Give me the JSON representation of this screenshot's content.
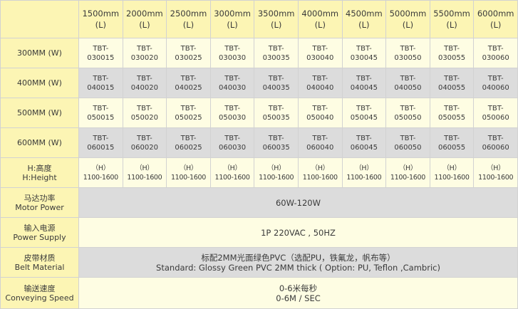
{
  "lengths": [
    {
      "size": "1500mm",
      "unit": "(L)"
    },
    {
      "size": "2000mm",
      "unit": "(L)"
    },
    {
      "size": "2500mm",
      "unit": "(L)"
    },
    {
      "size": "3000mm",
      "unit": "(L)"
    },
    {
      "size": "3500mm",
      "unit": "(L)"
    },
    {
      "size": "4000mm",
      "unit": "(L)"
    },
    {
      "size": "4500mm",
      "unit": "(L)"
    },
    {
      "size": "5000mm",
      "unit": "(L)"
    },
    {
      "size": "5500mm",
      "unit": "(L)"
    },
    {
      "size": "6000mm",
      "unit": "(L)"
    }
  ],
  "widths": [
    {
      "label": "300MM (W)",
      "codes": [
        "030015",
        "030020",
        "030025",
        "030030",
        "030035",
        "030040",
        "030045",
        "030050",
        "030055",
        "030060"
      ]
    },
    {
      "label": "400MM (W)",
      "codes": [
        "040015",
        "040020",
        "040025",
        "040030",
        "040035",
        "040040",
        "040045",
        "040050",
        "040055",
        "040060"
      ]
    },
    {
      "label": "500MM (W)",
      "codes": [
        "050015",
        "050020",
        "050025",
        "050030",
        "050035",
        "050040",
        "050045",
        "050050",
        "050055",
        "050060"
      ]
    },
    {
      "label": "600MM (W)",
      "codes": [
        "060015",
        "060020",
        "060025",
        "060030",
        "060035",
        "060040",
        "060045",
        "060050",
        "060055",
        "060060"
      ]
    }
  ],
  "code_prefix": "TBT-",
  "height": {
    "label_cn": "H:高度",
    "label_en": "H:Height",
    "unit": "（H）",
    "range": "1100-1600"
  },
  "specs": [
    {
      "label_cn": "马达功率",
      "label_en": "Motor Power",
      "line1": "60W-120W",
      "line2": ""
    },
    {
      "label_cn": "输入电源",
      "label_en": "Power Supply",
      "line1": "1P 220VAC , 50HZ",
      "line2": ""
    },
    {
      "label_cn": "皮带材质",
      "label_en": "Belt Material",
      "line1": "标配2MM光面绿色PVC（选配PU，铁氟龙，帆布等）",
      "line2": "Standard: Glossy Green PVC 2MM thick ( Option: PU, Teflon ,Cambric)"
    },
    {
      "label_cn": "输送速度",
      "label_en": "Conveying Speed",
      "line1": "0-6米每秒",
      "line2": "0-6M / SEC"
    }
  ],
  "colors": {
    "header": "#fcf5b4",
    "light": "#fefde3",
    "gray": "#dcdcdc",
    "border": "#d2d2d2"
  }
}
